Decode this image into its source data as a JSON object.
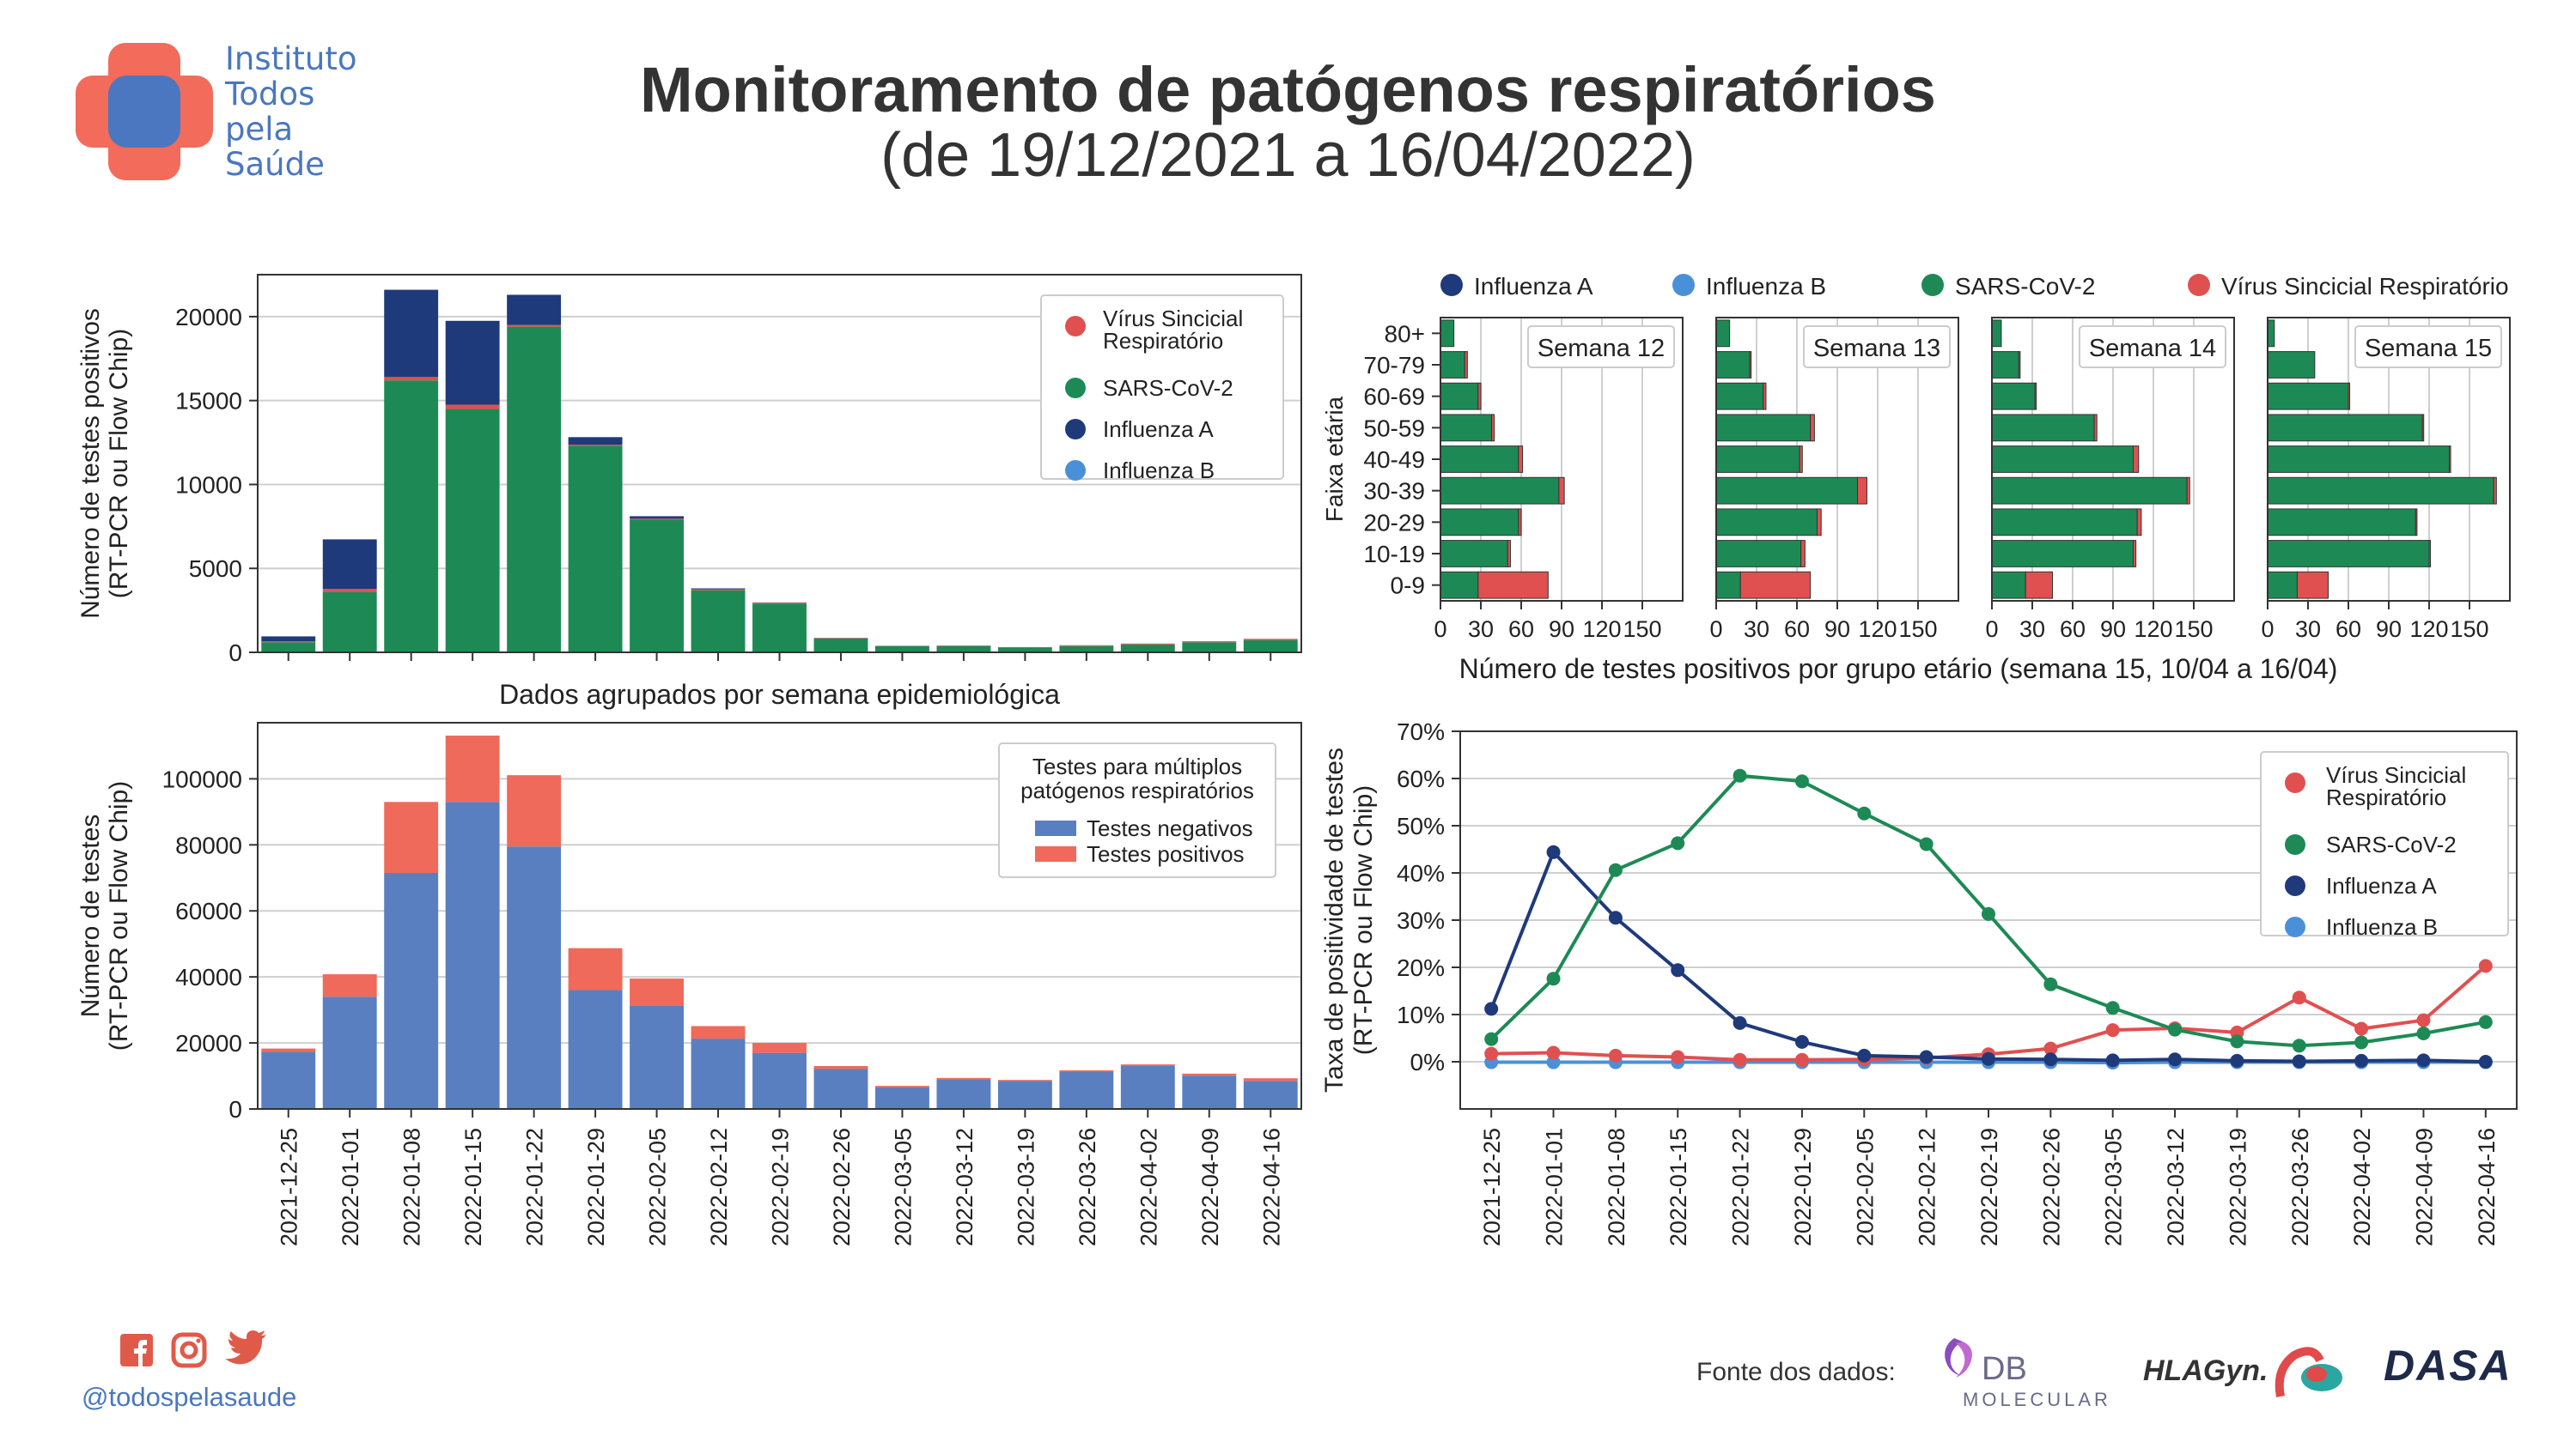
{
  "header": {
    "logo_text": [
      "Instituto",
      "Todos",
      "pela",
      "Saúde"
    ],
    "title": "Monitoramento de patógenos respiratórios",
    "subtitle": "(de 19/12/2021 a 16/04/2022)"
  },
  "colors": {
    "influenza_a": "#1f3a7a",
    "influenza_b": "#4a90d9",
    "sars_cov_2": "#1d8a55",
    "vsr": "#e05050",
    "negatives": "#5a7fc1",
    "positives": "#ef6a5a",
    "brand_red": "#f26b5b",
    "brand_blue": "#4a77bf"
  },
  "footer": {
    "handle": "@todospelasaude",
    "social_icons": [
      "facebook-icon",
      "instagram-icon",
      "twitter-icon"
    ],
    "source_label": "Fonte dos dados:",
    "sources": [
      "DB",
      "MOLECULAR",
      "HLAGyn.",
      "DASA"
    ]
  },
  "chart_data": [
    {
      "id": "pathogen-weekly",
      "type": "bar",
      "stacked": true,
      "xlabel": "Dados agrupados por semana epidemiológica",
      "ylabel": [
        "Número de testes positivos",
        "(RT-PCR ou Flow Chip)"
      ],
      "ylim": [
        0,
        22500
      ],
      "yticks": [
        "0",
        "5000",
        "10000",
        "15000",
        "20000"
      ],
      "grid": true,
      "legend_position": "top-right",
      "legend": [
        "Vírus Sincicial Respiratório",
        "SARS-CoV-2",
        "Influenza A",
        "Influenza B"
      ],
      "categories": [
        "2021-12-25",
        "2022-01-01",
        "2022-01-08",
        "2022-01-15",
        "2022-01-22",
        "2022-01-29",
        "2022-02-05",
        "2022-02-12",
        "2022-02-19",
        "2022-02-26",
        "2022-03-05",
        "2022-03-12",
        "2022-03-19",
        "2022-03-26",
        "2022-04-02",
        "2022-04-09",
        "2022-04-16"
      ],
      "series": [
        {
          "name": "SARS-CoV-2",
          "values": [
            600,
            3600,
            16200,
            14500,
            19400,
            12300,
            7900,
            3700,
            2900,
            820,
            360,
            370,
            280,
            370,
            470,
            600,
            730
          ]
        },
        {
          "name": "Vírus Sincicial Respiratório",
          "values": [
            50,
            180,
            200,
            250,
            100,
            70,
            60,
            60,
            50,
            30,
            20,
            30,
            20,
            40,
            40,
            50,
            70
          ]
        },
        {
          "name": "Influenza A",
          "values": [
            300,
            2950,
            5200,
            5000,
            1800,
            450,
            150,
            50,
            20,
            10,
            10,
            10,
            10,
            10,
            10,
            10,
            5
          ]
        },
        {
          "name": "Influenza B",
          "values": [
            0,
            0,
            0,
            0,
            0,
            0,
            0,
            0,
            0,
            0,
            0,
            0,
            0,
            0,
            0,
            0,
            0
          ]
        }
      ]
    },
    {
      "id": "tests-weekly",
      "type": "bar",
      "stacked": true,
      "ylabel": [
        "Número de testes",
        "(RT-PCR ou Flow Chip)"
      ],
      "ylim": [
        0,
        117000
      ],
      "yticks": [
        "0",
        "20000",
        "40000",
        "60000",
        "80000",
        "100000"
      ],
      "grid": true,
      "legend_position": "top-right",
      "legend_title": [
        "Testes para múltiplos",
        "patógenos respiratórios"
      ],
      "legend": [
        "Testes negativos",
        "Testes positivos"
      ],
      "categories": [
        "2021-12-25",
        "2022-01-01",
        "2022-01-08",
        "2022-01-15",
        "2022-01-22",
        "2022-01-29",
        "2022-02-05",
        "2022-02-12",
        "2022-02-19",
        "2022-02-26",
        "2022-03-05",
        "2022-03-12",
        "2022-03-19",
        "2022-03-26",
        "2022-04-02",
        "2022-04-09",
        "2022-04-16"
      ],
      "series": [
        {
          "name": "Testes negativos",
          "values": [
            17300,
            34000,
            71500,
            93000,
            79500,
            36000,
            31300,
            21300,
            17000,
            12100,
            6600,
            9000,
            8500,
            11300,
            13000,
            10100,
            8500
          ]
        },
        {
          "name": "Testes positivos",
          "values": [
            1000,
            6800,
            21500,
            20100,
            21600,
            12700,
            8200,
            3800,
            3000,
            900,
            400,
            400,
            300,
            400,
            500,
            600,
            800
          ]
        }
      ]
    },
    {
      "id": "age-groups",
      "type": "bar",
      "orientation": "horizontal",
      "stacked": true,
      "ylabel": "Faixa etária",
      "xlabel": "Número de testes positivos por grupo etário (semana 15, 10/04 a 16/04)",
      "xlim": [
        0,
        180
      ],
      "xticks": [
        "0",
        "30",
        "60",
        "90",
        "120",
        "150"
      ],
      "legend_position": "top",
      "legend": [
        "Influenza A",
        "Influenza B",
        "SARS-CoV-2",
        "Vírus Sincicial Respiratório"
      ],
      "categories": [
        "80+",
        "70-79",
        "60-69",
        "50-59",
        "40-49",
        "30-39",
        "20-29",
        "10-19",
        "0-9"
      ],
      "panels": [
        {
          "title": "Semana 12",
          "series": [
            {
              "name": "SARS-CoV-2",
              "values": [
                10,
                18,
                28,
                38,
                58,
                88,
                58,
                50,
                28
              ]
            },
            {
              "name": "Vírus Sincicial Respiratório",
              "values": [
                0,
                2,
                2,
                2,
                3,
                4,
                2,
                2,
                52
              ]
            }
          ]
        },
        {
          "title": "Semana 13",
          "series": [
            {
              "name": "SARS-CoV-2",
              "values": [
                10,
                25,
                35,
                70,
                62,
                105,
                75,
                63,
                18
              ]
            },
            {
              "name": "Vírus Sincicial Respiratório",
              "values": [
                0,
                1,
                2,
                3,
                2,
                7,
                3,
                3,
                52
              ]
            }
          ]
        },
        {
          "title": "Semana 14",
          "series": [
            {
              "name": "SARS-CoV-2",
              "values": [
                7,
                20,
                32,
                76,
                105,
                145,
                108,
                105,
                25
              ]
            },
            {
              "name": "Vírus Sincicial Respiratório",
              "values": [
                0,
                1,
                1,
                2,
                4,
                2,
                3,
                2,
                20
              ]
            }
          ]
        },
        {
          "title": "Semana 15",
          "series": [
            {
              "name": "SARS-CoV-2",
              "values": [
                5,
                35,
                60,
                115,
                135,
                168,
                110,
                120,
                22
              ]
            },
            {
              "name": "Vírus Sincicial Respiratório",
              "values": [
                0,
                0,
                1,
                1,
                1,
                2,
                1,
                1,
                23
              ]
            }
          ]
        }
      ]
    },
    {
      "id": "positivity-rate",
      "type": "line",
      "ylabel": [
        "Taxa de positividade de testes",
        "(RT-PCR ou Flow Chip)"
      ],
      "ylim": [
        -0.1,
        0.7
      ],
      "yticks": [
        "0%",
        "10%",
        "20%",
        "30%",
        "40%",
        "50%",
        "60%",
        "70%"
      ],
      "grid": true,
      "legend_position": "top-right",
      "legend": [
        "Vírus Sincicial Respiratório",
        "SARS-CoV-2",
        "Influenza A",
        "Influenza B"
      ],
      "x": [
        "2021-12-25",
        "2022-01-01",
        "2022-01-08",
        "2022-01-15",
        "2022-01-22",
        "2022-01-29",
        "2022-02-05",
        "2022-02-12",
        "2022-02-19",
        "2022-02-26",
        "2022-03-05",
        "2022-03-12",
        "2022-03-19",
        "2022-03-26",
        "2022-04-02",
        "2022-04-09",
        "2022-04-16"
      ],
      "series": [
        {
          "name": "Vírus Sincicial Respiratório",
          "values": [
            0.017,
            0.019,
            0.013,
            0.01,
            0.004,
            0.004,
            0.005,
            0.008,
            0.016,
            0.028,
            0.067,
            0.071,
            0.062,
            0.136,
            0.07,
            0.088,
            0.203
          ]
        },
        {
          "name": "SARS-CoV-2",
          "values": [
            0.048,
            0.176,
            0.406,
            0.463,
            0.606,
            0.594,
            0.526,
            0.461,
            0.313,
            0.164,
            0.114,
            0.068,
            0.043,
            0.034,
            0.041,
            0.06,
            0.084
          ]
        },
        {
          "name": "Influenza A",
          "values": [
            0.112,
            0.444,
            0.305,
            0.194,
            0.082,
            0.042,
            0.013,
            0.01,
            0.006,
            0.005,
            0.003,
            0.005,
            0.002,
            0.001,
            0.002,
            0.003,
            0.0
          ]
        },
        {
          "name": "Influenza B",
          "values": [
            -0.001,
            -0.001,
            -0.001,
            -0.001,
            -0.001,
            -0.001,
            -0.001,
            -0.001,
            -0.001,
            -0.001,
            -0.002,
            -0.001,
            -0.001,
            -0.001,
            -0.001,
            -0.001,
            -0.001
          ]
        }
      ]
    }
  ]
}
